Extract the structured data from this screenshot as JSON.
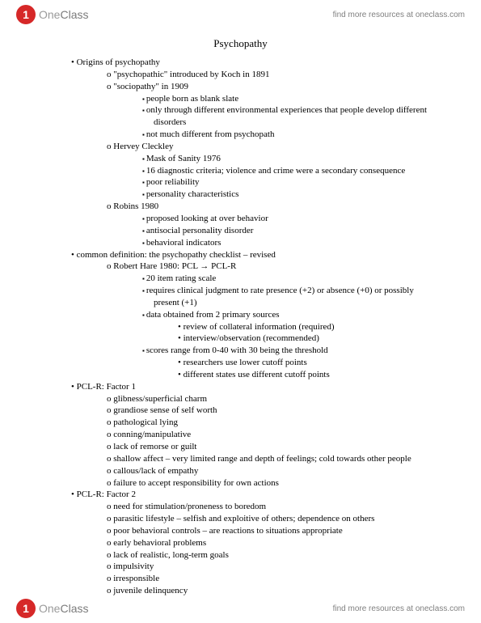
{
  "brand": {
    "one": "One",
    "class": "Class",
    "tagline": "find more resources at oneclass.com"
  },
  "title": "Psychopathy",
  "doc": {
    "items": [
      {
        "text": "Origins of psychopathy",
        "children": [
          {
            "text": "\"psychopathic\" introduced by Koch in 1891"
          },
          {
            "text": "\"sociopathy\" in 1909",
            "children": [
              {
                "text": "people born as blank slate"
              },
              {
                "text": "only through different environmental experiences that people develop different disorders"
              },
              {
                "text": "not much different from psychopath"
              }
            ]
          },
          {
            "text": "Hervey Cleckley",
            "children": [
              {
                "text": "Mask of Sanity 1976"
              },
              {
                "text": "16 diagnostic criteria; violence and crime were a secondary consequence"
              },
              {
                "text": "poor reliability"
              },
              {
                "text": "personality characteristics"
              }
            ]
          },
          {
            "text": "Robins 1980",
            "children": [
              {
                "text": "proposed looking at over behavior"
              },
              {
                "text": "antisocial personality disorder"
              },
              {
                "text": "behavioral indicators"
              }
            ]
          }
        ]
      },
      {
        "text": "common definition: the psychopathy checklist – revised",
        "children": [
          {
            "text": "Robert Hare 1980: PCL → PCL-R",
            "children": [
              {
                "text": "20 item rating scale"
              },
              {
                "text": "requires clinical judgment to rate presence (+2) or absence (+0) or possibly present (+1)"
              },
              {
                "text": "data obtained from 2 primary sources",
                "children": [
                  {
                    "text": "review of collateral information (required)"
                  },
                  {
                    "text": "interview/observation (recommended)"
                  }
                ]
              },
              {
                "text": "scores range from 0-40 with 30 being the threshold",
                "children": [
                  {
                    "text": "researchers use lower cutoff points"
                  },
                  {
                    "text": "different states use different cutoff points"
                  }
                ]
              }
            ]
          }
        ]
      },
      {
        "text": "PCL-R: Factor 1",
        "children": [
          {
            "text": "glibness/superficial charm"
          },
          {
            "text": "grandiose sense of self worth"
          },
          {
            "text": "pathological lying"
          },
          {
            "text": "conning/manipulative"
          },
          {
            "text": "lack of remorse or guilt"
          },
          {
            "text": "shallow affect – very limited range and depth of feelings; cold towards other people"
          },
          {
            "text": "callous/lack of empathy"
          },
          {
            "text": "failure to accept responsibility for own actions"
          }
        ]
      },
      {
        "text": "PCL-R: Factor 2",
        "children": [
          {
            "text": "need for stimulation/proneness to boredom"
          },
          {
            "text": "parasitic lifestyle – selfish and exploitive of others; dependence on others"
          },
          {
            "text": "poor behavioral controls – are reactions to situations appropriate"
          },
          {
            "text": "early behavioral problems"
          },
          {
            "text": "lack of realistic, long-term goals"
          },
          {
            "text": "impulsivity"
          },
          {
            "text": "irresponsible"
          },
          {
            "text": "juvenile delinquency"
          }
        ]
      }
    ]
  }
}
